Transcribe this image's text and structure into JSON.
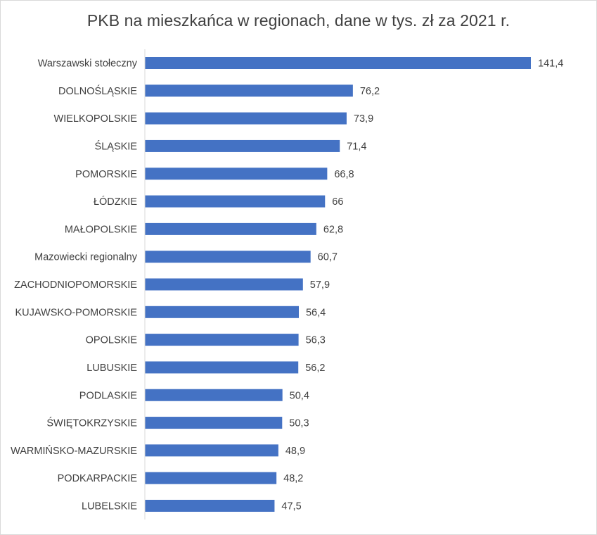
{
  "chart_data": {
    "type": "bar",
    "orientation": "horizontal",
    "title": "PKB na mieszkańca w regionach, dane w tys. zł za 2021 r.",
    "categories": [
      "Warszawski stołeczny",
      "DOLNOŚLĄSKIE",
      "WIELKOPOLSKIE",
      "ŚLĄSKIE",
      "POMORSKIE",
      "ŁÓDZKIE",
      "MAŁOPOLSKIE",
      "Mazowiecki regionalny",
      "ZACHODNIOPOMORSKIE",
      "KUJAWSKO-POMORSKIE",
      "OPOLSKIE",
      "LUBUSKIE",
      "PODLASKIE",
      "ŚWIĘTOKRZYSKIE",
      "WARMIŃSKO-MAZURSKIE",
      "PODKARPACKIE",
      "LUBELSKIE"
    ],
    "values": [
      141.4,
      76.2,
      73.9,
      71.4,
      66.8,
      66,
      62.8,
      60.7,
      57.9,
      56.4,
      56.3,
      56.2,
      50.4,
      50.3,
      48.9,
      48.2,
      47.5
    ],
    "value_labels": [
      "141,4",
      "76,2",
      "73,9",
      "71,4",
      "66,8",
      "66",
      "62,8",
      "60,7",
      "57,9",
      "56,4",
      "56,3",
      "56,2",
      "50,4",
      "50,3",
      "48,9",
      "48,2",
      "47,5"
    ],
    "xlim": [
      0,
      141.4
    ],
    "grid": false,
    "bar_color": "#4472c4",
    "axis_color": "#d9d9d9",
    "text_color": "#404040"
  }
}
